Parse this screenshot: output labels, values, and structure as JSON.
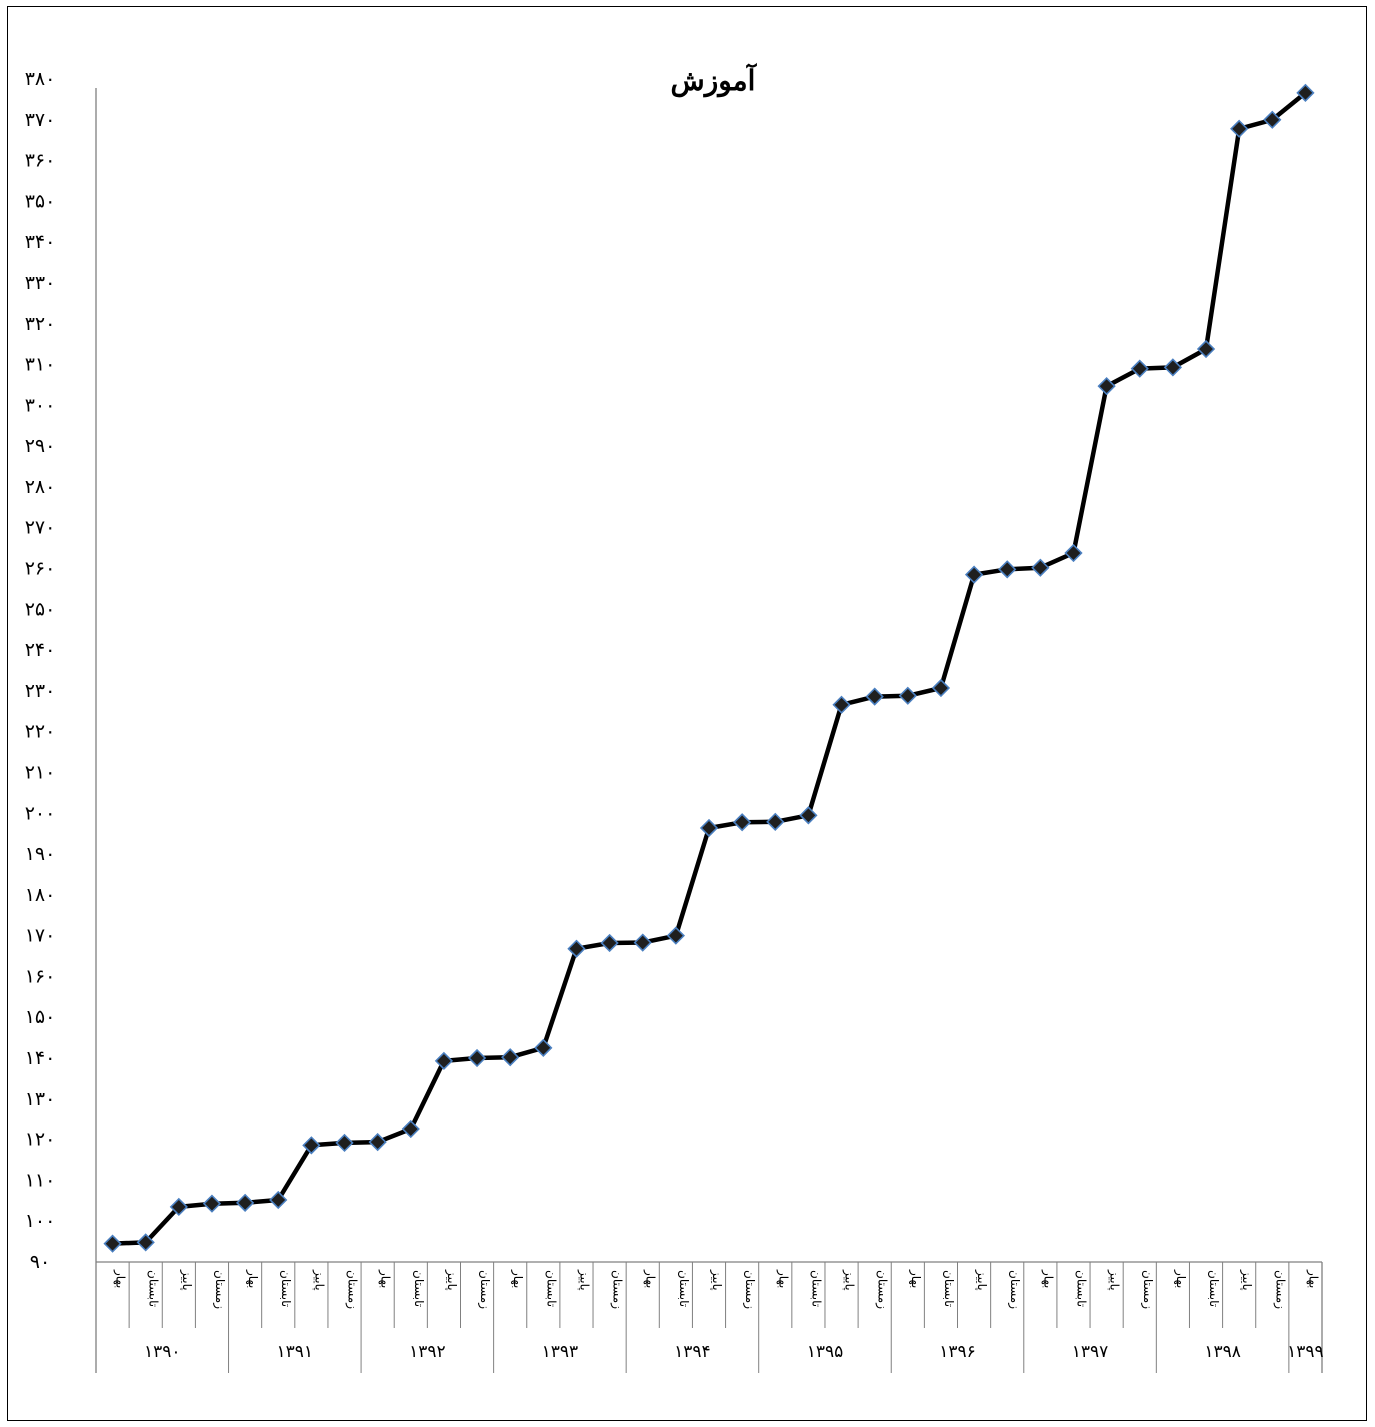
{
  "chart_data": {
    "type": "line",
    "title": "آموزش",
    "xlabel": "",
    "ylabel": "",
    "ylim": [
      90,
      380
    ],
    "y_ticks": [
      "۹۰",
      "۱۰۰",
      "۱۱۰",
      "۱۲۰",
      "۱۳۰",
      "۱۴۰",
      "۱۵۰",
      "۱۶۰",
      "۱۷۰",
      "۱۸۰",
      "۱۹۰",
      "۲۰۰",
      "۲۱۰",
      "۲۲۰",
      "۲۳۰",
      "۲۴۰",
      "۲۵۰",
      "۲۶۰",
      "۲۷۰",
      "۲۸۰",
      "۲۹۰",
      "۳۰۰",
      "۳۱۰",
      "۳۲۰",
      "۳۳۰",
      "۳۴۰",
      "۳۵۰",
      "۳۶۰",
      "۳۷۰",
      "۳۸۰"
    ],
    "y_tick_values": [
      90,
      100,
      110,
      120,
      130,
      140,
      150,
      160,
      170,
      180,
      190,
      200,
      210,
      220,
      230,
      240,
      250,
      260,
      270,
      280,
      290,
      300,
      310,
      320,
      330,
      340,
      350,
      360,
      370,
      380
    ],
    "season_labels": [
      "بهار",
      "تابستان",
      "پاییز",
      "زمستان"
    ],
    "years": [
      {
        "label": "۱۳۹۰",
        "count": 4
      },
      {
        "label": "۱۳۹۱",
        "count": 4
      },
      {
        "label": "۱۳۹۲",
        "count": 4
      },
      {
        "label": "۱۳۹۳",
        "count": 4
      },
      {
        "label": "۱۳۹۴",
        "count": 4
      },
      {
        "label": "۱۳۹۵",
        "count": 4
      },
      {
        "label": "۱۳۹۶",
        "count": 4
      },
      {
        "label": "۱۳۹۷",
        "count": 4
      },
      {
        "label": "۱۳۹۸",
        "count": 4
      },
      {
        "label": "۱۳۹۹",
        "count": 1
      }
    ],
    "grid": false,
    "legend": "none",
    "colors": {
      "line": "#000000",
      "marker_fill": "#1f1f1f",
      "marker_edge": "#4a7fc0",
      "axis": "#808080"
    },
    "series": [
      {
        "values": [
          94.5,
          94.8,
          103.5,
          104.3,
          104.5,
          105.2,
          118.6,
          119.2,
          119.4,
          122.6,
          139.3,
          140.0,
          140.2,
          142.5,
          166.8,
          168.2,
          168.3,
          170.0,
          196.4,
          197.8,
          197.9,
          199.5,
          226.6,
          228.6,
          228.8,
          230.7,
          258.5,
          259.8,
          260.2,
          263.8,
          304.7,
          309.0,
          309.3,
          313.8,
          367.8,
          370.0,
          376.6
        ]
      }
    ]
  }
}
